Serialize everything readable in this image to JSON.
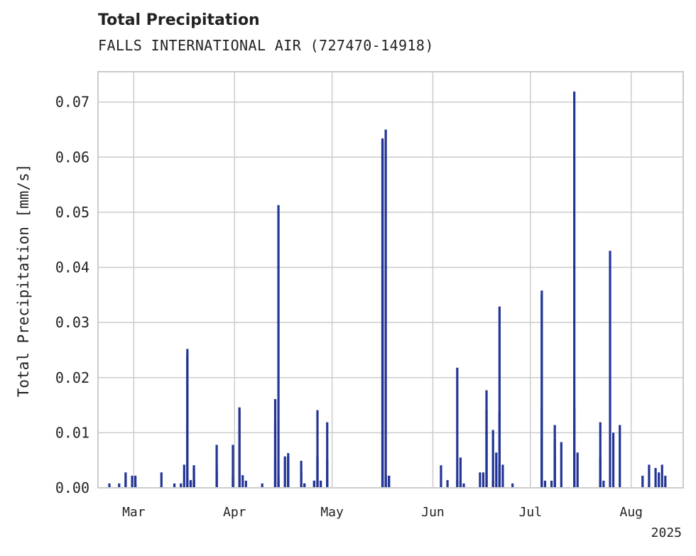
{
  "chart_data": {
    "type": "bar",
    "title": "Total Precipitation",
    "subtitle": "FALLS INTERNATIONAL AIR (727470-14918)",
    "ylabel": "Total Precipitation [mm/s]",
    "xlabel": "",
    "x_year_label": "2025",
    "x_tick_labels": [
      {
        "date": "2025-03-01",
        "label": "Mar"
      },
      {
        "date": "2025-04-01",
        "label": "Apr"
      },
      {
        "date": "2025-05-01",
        "label": "May"
      },
      {
        "date": "2025-06-01",
        "label": "Jun"
      },
      {
        "date": "2025-07-01",
        "label": "Jul"
      },
      {
        "date": "2025-08-01",
        "label": "Aug"
      }
    ],
    "y_ticks": [
      "0.00",
      "0.01",
      "0.02",
      "0.03",
      "0.04",
      "0.05",
      "0.06",
      "0.07"
    ],
    "xlim": [
      "2025-02-18",
      "2025-08-17"
    ],
    "ylim": [
      0,
      0.0755
    ],
    "grid": true,
    "color": "#233495",
    "series": [
      {
        "x": [
          "2025-02-21",
          "2025-02-24",
          "2025-02-26",
          "2025-02-26",
          "2025-03-01",
          "2025-02-28",
          "2025-03-01",
          "2025-03-09",
          "2025-03-13",
          "2025-03-15",
          "2025-03-16",
          "2025-03-17",
          "2025-03-17",
          "2025-03-17",
          "2025-03-17",
          "2025-03-18",
          "2025-03-18",
          "2025-03-19",
          "2025-03-19",
          "2025-03-19",
          "2025-03-19",
          "2025-03-26",
          "2025-03-26",
          "2025-03-26",
          "2025-03-31",
          "2025-03-31",
          "2025-04-02",
          "2025-04-02",
          "2025-04-02",
          "2025-04-03",
          "2025-04-04",
          "2025-04-09",
          "2025-04-13",
          "2025-04-13",
          "2025-04-13",
          "2025-04-14",
          "2025-04-14",
          "2025-04-14",
          "2025-04-16",
          "2025-04-17",
          "2025-04-17",
          "2025-04-17",
          "2025-04-21",
          "2025-04-21",
          "2025-04-22",
          "2025-04-22",
          "2025-04-25",
          "2025-04-25",
          "2025-04-25",
          "2025-04-26",
          "2025-04-26",
          "2025-04-26",
          "2025-04-27",
          "2025-04-27",
          "2025-04-29",
          "2025-04-29",
          "2025-04-29",
          "2025-05-16",
          "2025-05-16",
          "2025-05-16",
          "2025-05-16",
          "2025-05-17",
          "2025-05-17",
          "2025-05-17",
          "2025-05-18",
          "2025-05-18",
          "2025-06-03",
          "2025-06-05",
          "2025-06-08",
          "2025-06-08",
          "2025-06-09",
          "2025-06-09",
          "2025-06-10",
          "2025-06-15",
          "2025-06-16",
          "2025-06-17",
          "2025-06-17",
          "2025-06-17",
          "2025-06-19",
          "2025-06-19",
          "2025-06-20",
          "2025-06-21",
          "2025-06-21",
          "2025-06-21",
          "2025-06-22",
          "2025-06-25",
          "2025-07-04",
          "2025-07-04",
          "2025-07-04",
          "2025-07-04",
          "2025-07-04",
          "2025-07-05",
          "2025-07-07",
          "2025-07-08",
          "2025-07-08",
          "2025-07-08",
          "2025-07-10",
          "2025-07-14",
          "2025-07-14",
          "2025-07-14",
          "2025-07-15",
          "2025-07-22",
          "2025-07-22",
          "2025-07-22",
          "2025-07-23",
          "2025-07-25",
          "2025-07-26",
          "2025-07-28",
          "2025-08-04",
          "2025-08-06",
          "2025-08-06",
          "2025-08-08",
          "2025-08-09",
          "2025-08-10",
          "2025-08-11",
          "2025-08-11"
        ],
        "values": [
          0.0008,
          0.0008,
          0.0014,
          0.0028,
          0.0022,
          0.0022,
          0.0008,
          0.0028,
          0.0008,
          0.0008,
          0.0042,
          0.0114,
          0.0238,
          0.0252,
          0.0243,
          0.0012,
          0.0014,
          0.0041,
          0.0036,
          0.0015,
          0.0013,
          0.0078,
          0.0041,
          0.0028,
          0.0022,
          0.0078,
          0.0028,
          0.0142,
          0.0146,
          0.0023,
          0.0013,
          0.0008,
          0.0118,
          0.0161,
          0.0052,
          0.0513,
          0.0022,
          0.0012,
          0.0057,
          0.0063,
          0.0056,
          0.0051,
          0.0049,
          0.0028,
          0.0008,
          0.0008,
          0.0013,
          0.0012,
          0.0013,
          0.0052,
          0.0141,
          0.0058,
          0.0013,
          0.0013,
          0.0052,
          0.0119,
          0.0014,
          0.0381,
          0.0634,
          0.063,
          0.0629,
          0.0013,
          0.065,
          0.0022,
          0.0022,
          0.0022,
          0.0041,
          0.0014,
          0.0218,
          0.0014,
          0.0055,
          0.0013,
          0.0008,
          0.0028,
          0.0028,
          0.0104,
          0.0177,
          0.0142,
          0.0105,
          0.0013,
          0.0064,
          0.0138,
          0.0329,
          0.0042,
          0.0042,
          0.0008,
          0.0147,
          0.0358,
          0.035,
          0.0092,
          0.0036,
          0.0013,
          0.0013,
          0.0062,
          0.0114,
          0.0087,
          0.0083,
          0.0013,
          0.0146,
          0.0719,
          0.0064,
          0.0055,
          0.0012,
          0.0119,
          0.0013,
          0.043,
          0.01,
          0.0114,
          0.0022,
          0.0042,
          0.0008,
          0.0036,
          0.0028,
          0.0042,
          0.0022,
          0.0008
        ]
      }
    ]
  }
}
